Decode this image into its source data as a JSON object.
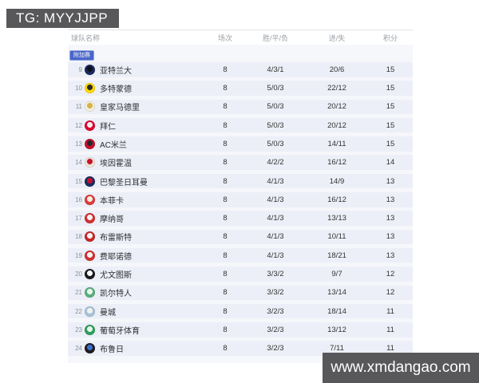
{
  "watermark_top": {
    "text": "TG: MYYJJPP"
  },
  "watermark_bottom": {
    "text": "www.xmdangao.com"
  },
  "colors": {
    "watermark_bar_bg": "#58585a",
    "watermark_text": "#ffffff",
    "table_section_bg": "#f6f7fb",
    "row_band_bg": "#eceff7",
    "badge_bg": "#4a66c8",
    "header_text": "#9aa0a6",
    "body_text": "#333333"
  },
  "table": {
    "columns": [
      "球队名称",
      "场次",
      "胜/平/负",
      "进/失",
      "积分"
    ],
    "section_badge": "附加赛",
    "rows": [
      {
        "rank": 9,
        "team": "亚特兰大",
        "played": "8",
        "wdl": "4/3/1",
        "goals": "20/6",
        "points": "15",
        "logo": [
          "#1a2a5e",
          "#10101e"
        ]
      },
      {
        "rank": 10,
        "team": "多特蒙德",
        "played": "8",
        "wdl": "5/0/3",
        "goals": "22/12",
        "points": "15",
        "logo": [
          "#ffd900",
          "#2b2b2b"
        ]
      },
      {
        "rank": 11,
        "team": "皇家马德里",
        "played": "8",
        "wdl": "5/0/3",
        "goals": "20/12",
        "points": "15",
        "logo": [
          "#f3efdf",
          "#d4b34a"
        ]
      },
      {
        "rank": 12,
        "team": "拜仁",
        "played": "8",
        "wdl": "5/0/3",
        "goals": "20/12",
        "points": "15",
        "logo": [
          "#dc052d",
          "#f2f2f2"
        ]
      },
      {
        "rank": 13,
        "team": "AC米兰",
        "played": "8",
        "wdl": "5/0/3",
        "goals": "14/11",
        "points": "15",
        "logo": [
          "#c8102e",
          "#26262b"
        ]
      },
      {
        "rank": 14,
        "team": "埃因霍温",
        "played": "8",
        "wdl": "4/2/2",
        "goals": "16/12",
        "points": "14",
        "logo": [
          "#ece4d6",
          "#c8102e"
        ]
      },
      {
        "rank": 15,
        "team": "巴黎圣日耳曼",
        "played": "8",
        "wdl": "4/1/3",
        "goals": "14/9",
        "points": "13",
        "logo": [
          "#1a2e5a",
          "#c8102e"
        ]
      },
      {
        "rank": 16,
        "team": "本菲卡",
        "played": "8",
        "wdl": "4/1/3",
        "goals": "16/12",
        "points": "13",
        "logo": [
          "#e03a3e",
          "#f6efdc"
        ]
      },
      {
        "rank": 17,
        "team": "摩纳哥",
        "played": "8",
        "wdl": "4/1/3",
        "goals": "13/13",
        "points": "13",
        "logo": [
          "#d32f2f",
          "#f4f4f4"
        ]
      },
      {
        "rank": 18,
        "team": "布雷斯特",
        "played": "8",
        "wdl": "4/1/3",
        "goals": "10/11",
        "points": "13",
        "logo": [
          "#c62828",
          "#f4f4f4"
        ]
      },
      {
        "rank": 19,
        "team": "费耶诺德",
        "played": "8",
        "wdl": "4/1/3",
        "goals": "18/21",
        "points": "13",
        "logo": [
          "#d32f2f",
          "#f6f6f6"
        ]
      },
      {
        "rank": 20,
        "team": "尤文图斯",
        "played": "8",
        "wdl": "3/3/2",
        "goals": "9/7",
        "points": "12",
        "logo": [
          "#1a1a1a",
          "#f6f6f6"
        ]
      },
      {
        "rank": 21,
        "team": "凯尔特人",
        "played": "8",
        "wdl": "3/3/2",
        "goals": "13/14",
        "points": "12",
        "logo": [
          "#58b07c",
          "#eef6ef"
        ]
      },
      {
        "rank": 22,
        "team": "曼城",
        "played": "8",
        "wdl": "3/2/3",
        "goals": "18/14",
        "points": "11",
        "logo": [
          "#a6c3d9",
          "#f1f1ee"
        ]
      },
      {
        "rank": 23,
        "team": "葡萄牙体育",
        "played": "8",
        "wdl": "3/2/3",
        "goals": "13/12",
        "points": "11",
        "logo": [
          "#2e9e5b",
          "#e9f3ea"
        ]
      },
      {
        "rank": 24,
        "team": "布鲁日",
        "played": "8",
        "wdl": "3/2/3",
        "goals": "7/11",
        "points": "11",
        "logo": [
          "#1c1c1c",
          "#3a6fd8"
        ]
      }
    ]
  }
}
